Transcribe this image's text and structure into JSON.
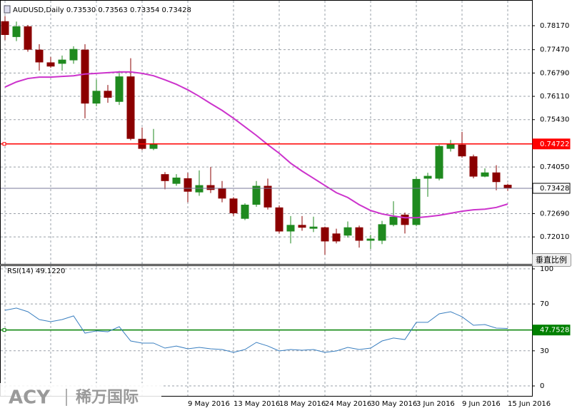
{
  "chart_data": [
    {
      "type": "candlestick",
      "title": "AUDUSD,Daily  0.73530 0.73563 0.73354 0.73428",
      "categories": [
        null,
        null,
        null,
        null,
        null,
        null,
        null,
        null,
        null,
        null,
        null,
        null,
        null,
        null,
        null,
        null,
        "9 May 2016",
        null,
        null,
        null,
        "13 May 2016",
        null,
        null,
        null,
        "18 May 2016",
        null,
        null,
        null,
        "24 May 2016",
        null,
        null,
        null,
        "30 May 2016",
        null,
        null,
        null,
        "3 Jun 2016",
        null,
        null,
        null,
        "9 Jun 2016",
        null,
        null,
        null,
        "15 Jun 2016"
      ],
      "open": [
        0.783,
        0.7784,
        0.7815,
        0.7747,
        0.771,
        0.7706,
        0.7716,
        0.7747,
        0.759,
        0.7627,
        0.7595,
        0.7669,
        0.7487,
        0.7458,
        0.7384,
        0.7356,
        0.7372,
        0.7331,
        0.7352,
        0.7342,
        0.7313,
        0.7254,
        0.7295,
        0.735,
        0.7287,
        0.7217,
        0.7236,
        0.7225,
        0.7229,
        0.7211,
        0.7205,
        0.7229,
        0.719,
        0.719,
        0.7236,
        0.7266,
        0.7236,
        0.7371,
        0.7371,
        0.7458,
        0.747,
        0.7436,
        0.7377,
        0.7389,
        0.7353
      ],
      "high": [
        0.7845,
        0.7829,
        0.7819,
        0.7763,
        0.7726,
        0.773,
        0.7757,
        0.7763,
        0.766,
        0.7644,
        0.7685,
        0.7722,
        0.752,
        0.7516,
        0.739,
        0.7384,
        0.7388,
        0.7395,
        0.7405,
        0.7364,
        0.7317,
        0.7299,
        0.7364,
        0.7371,
        0.7293,
        0.7262,
        0.7262,
        0.726,
        0.7231,
        0.7225,
        0.7246,
        0.7234,
        0.7207,
        0.7248,
        0.7305,
        0.7272,
        0.7377,
        0.7388,
        0.747,
        0.7484,
        0.7507,
        0.7441,
        0.7401,
        0.741,
        0.73563
      ],
      "low": [
        0.7775,
        0.7772,
        0.7741,
        0.7686,
        0.7694,
        0.7686,
        0.7706,
        0.7547,
        0.7582,
        0.7592,
        0.7586,
        0.7483,
        0.7454,
        0.7454,
        0.734,
        0.735,
        0.7302,
        0.7321,
        0.7329,
        0.7302,
        0.7262,
        0.725,
        0.7289,
        0.7281,
        0.7211,
        0.7182,
        0.7219,
        0.7215,
        0.7149,
        0.7182,
        0.7199,
        0.717,
        0.7166,
        0.718,
        0.7232,
        0.7211,
        0.7232,
        0.7318,
        0.7366,
        0.745,
        0.7432,
        0.7372,
        0.7375,
        0.7337,
        0.73354
      ],
      "close": [
        0.779,
        0.7815,
        0.7747,
        0.771,
        0.7698,
        0.7718,
        0.7749,
        0.759,
        0.7627,
        0.7607,
        0.7669,
        0.7487,
        0.7458,
        0.7471,
        0.7364,
        0.7374,
        0.7333,
        0.7352,
        0.7338,
        0.7313,
        0.727,
        0.7295,
        0.735,
        0.7287,
        0.7217,
        0.7236,
        0.7228,
        0.7231,
        0.7188,
        0.7188,
        0.7229,
        0.719,
        0.7196,
        0.7238,
        0.726,
        0.7236,
        0.737,
        0.7379,
        0.7466,
        0.7472,
        0.7436,
        0.7377,
        0.7389,
        0.7361,
        0.73428
      ],
      "up_color": "#1f8a1f",
      "down_color": "#8b0000",
      "overlay": {
        "color": "#cc33cc",
        "values": [
          0.7638,
          0.7653,
          0.7663,
          0.7667,
          0.7667,
          0.7669,
          0.7671,
          0.7676,
          0.7678,
          0.768,
          0.7682,
          0.7682,
          0.7678,
          0.7671,
          0.7659,
          0.7646,
          0.763,
          0.7611,
          0.759,
          0.757,
          0.7547,
          0.7522,
          0.7497,
          0.747,
          0.7445,
          0.7416,
          0.7393,
          0.7372,
          0.7351,
          0.733,
          0.7316,
          0.7295,
          0.7278,
          0.7268,
          0.7262,
          0.7257,
          0.7257,
          0.726,
          0.7264,
          0.727,
          0.7276,
          0.728,
          0.7282,
          0.7287,
          0.7297
        ]
      },
      "hlines": [
        {
          "value": 0.74722,
          "color": "#ff0000"
        },
        {
          "value": 0.73428,
          "color": "#7a7a9a"
        }
      ],
      "ylim": [
        0.71223,
        0.78919
      ],
      "yticks": [
        {
          "value": 0.7817,
          "label": "0.78170"
        },
        {
          "value": 0.7747,
          "label": "0.77470"
        },
        {
          "value": 0.7679,
          "label": "0.76790"
        },
        {
          "value": 0.7611,
          "label": "0.76110"
        },
        {
          "value": 0.7543,
          "label": "0.75430"
        },
        {
          "value": 0.7405,
          "label": "0.74050"
        },
        {
          "value": 0.7269,
          "label": "0.72690"
        },
        {
          "value": 0.7201,
          "label": "0.72010"
        }
      ],
      "grid": true
    },
    {
      "type": "line",
      "title": "RSI(14) 49.1220",
      "color": "#3a7fc0",
      "values": [
        64.6,
        66.5,
        63.4,
        56.7,
        54.9,
        56.7,
        59.8,
        45.1,
        47.0,
        46.3,
        50.6,
        38.4,
        36.6,
        36.6,
        32.3,
        34.1,
        31.7,
        32.9,
        31.7,
        31.1,
        28.7,
        31.1,
        37.2,
        34.1,
        29.9,
        31.1,
        30.5,
        31.1,
        28.7,
        29.9,
        32.9,
        31.1,
        32.3,
        38.4,
        40.9,
        39.6,
        54.3,
        54.3,
        61.6,
        63.4,
        59.1,
        51.8,
        52.4,
        49.4,
        49.1
      ],
      "hlines": [
        {
          "value": 47.7528,
          "color": "#008000"
        }
      ],
      "ylim": [
        -8.5,
        103
      ],
      "yticks": [
        100,
        70,
        30,
        0
      ],
      "grid": true
    }
  ],
  "ui": {
    "button": "垂直比例",
    "watermark": {
      "brand": "ACY",
      "name": "稀万国际"
    }
  }
}
